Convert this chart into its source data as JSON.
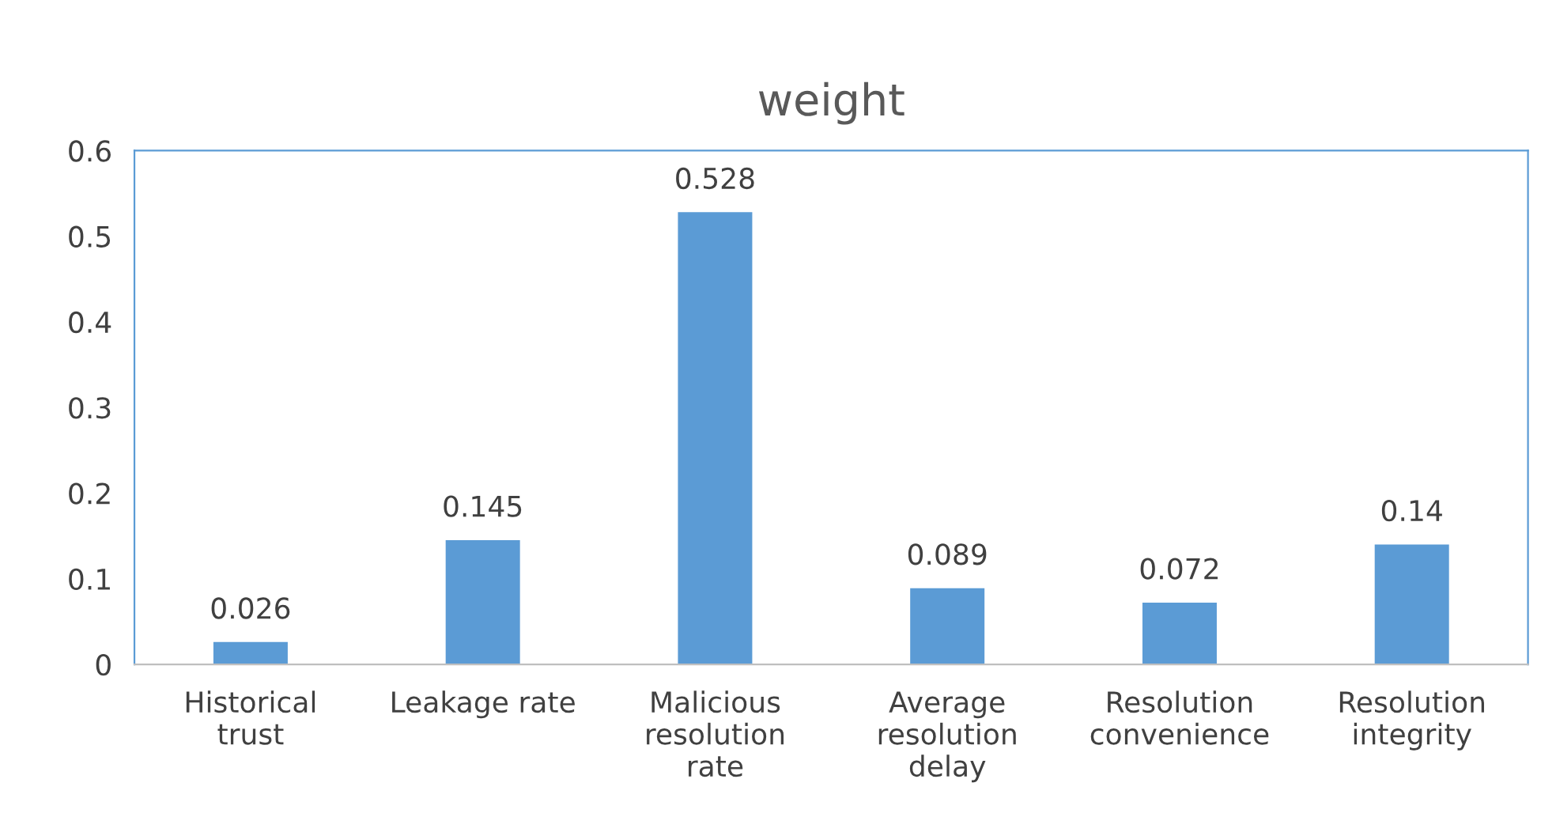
{
  "chart_data": {
    "type": "bar",
    "title": "weight",
    "categories": [
      "Historical\ntrust",
      "Leakage rate",
      "Malicious\nresolution\nrate",
      "Average\nresolution\ndelay",
      "Resolution\nconvenience",
      "Resolution\nintegrity"
    ],
    "values": [
      0.026,
      0.145,
      0.528,
      0.089,
      0.072,
      0.14
    ],
    "color": "#5b9bd5",
    "ylim": [
      0,
      0.6
    ],
    "yticks": [
      0,
      0.1,
      0.2,
      0.3,
      0.4,
      0.5,
      0.6
    ],
    "grid": false,
    "legend": false,
    "data_labels": true
  }
}
